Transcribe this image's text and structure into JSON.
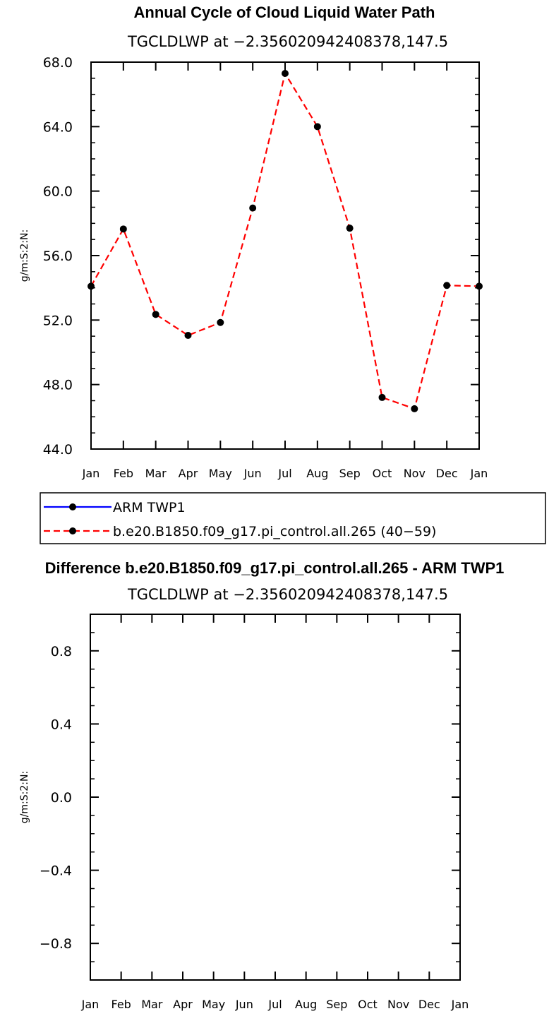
{
  "chart_data": [
    {
      "type": "line",
      "title": "Annual Cycle of Cloud Liquid Water Path",
      "subtitle": "TGCLDLWP at −2.356020942408378,147.5",
      "ylabel": "g/m:S:2:N:",
      "ylim": [
        44,
        68
      ],
      "yticks": [
        "68.0",
        "64.0",
        "60.0",
        "56.0",
        "52.0",
        "48.0",
        "44.0"
      ],
      "ytick_values": [
        68,
        64,
        60,
        56,
        52,
        48,
        44
      ],
      "categories": [
        "Jan",
        "Feb",
        "Mar",
        "Apr",
        "May",
        "Jun",
        "Jul",
        "Aug",
        "Sep",
        "Oct",
        "Nov",
        "Dec",
        "Jan"
      ],
      "grid": false,
      "series": [
        {
          "name": "b.e20.B1850.f09_g17.pi_control.all.265 (40−59)",
          "color": "#ff0000",
          "style": "dashed",
          "values": [
            54.1,
            57.65,
            52.35,
            51.05,
            51.85,
            58.95,
            67.3,
            64.0,
            57.7,
            47.2,
            46.5,
            54.15,
            54.1
          ]
        }
      ],
      "legend": {
        "position": "below",
        "entries": [
          {
            "label": "ARM  TWP1",
            "color": "#0000ff",
            "style": "solid"
          },
          {
            "label": "b.e20.B1850.f09_g17.pi_control.all.265 (40−59)",
            "color": "#ff0000",
            "style": "dashed"
          }
        ]
      }
    },
    {
      "type": "line",
      "title": "Difference b.e20.B1850.f09_g17.pi_control.all.265 - ARM TWP1",
      "subtitle": "TGCLDLWP at −2.356020942408378,147.5",
      "ylabel": "g/m:S:2:N:",
      "ylim": [
        -1,
        1
      ],
      "yticks": [
        "0.8",
        "0.4",
        "0.0",
        "−0.4",
        "−0.8"
      ],
      "ytick_values": [
        0.8,
        0.4,
        0.0,
        -0.4,
        -0.8
      ],
      "categories": [
        "Jan",
        "Feb",
        "Mar",
        "Apr",
        "May",
        "Jun",
        "Jul",
        "Aug",
        "Sep",
        "Oct",
        "Nov",
        "Dec",
        "Jan"
      ],
      "grid": false,
      "series": []
    }
  ]
}
